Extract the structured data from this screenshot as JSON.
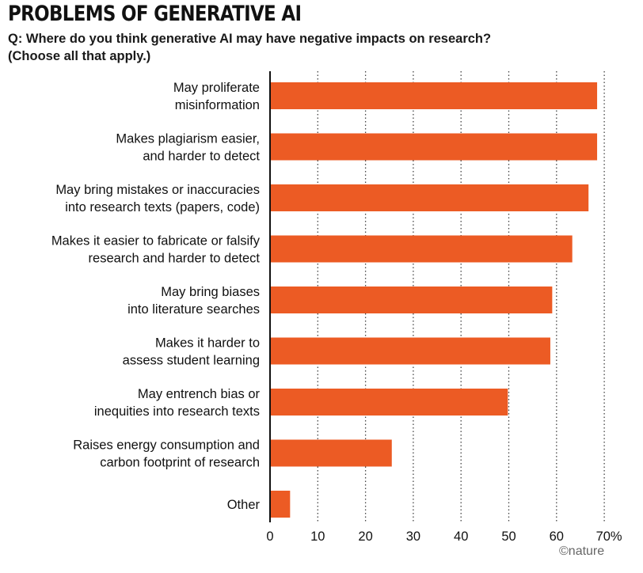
{
  "title": "PROBLEMS OF GENERATIVE AI",
  "subtitle": "Q: Where do you think generative AI may have negative impacts on research? (Choose all that apply.)",
  "credit": "©nature",
  "colors": {
    "bar": "#ec5b24",
    "axis": "#111111",
    "grid": "#444444"
  },
  "chart_data": {
    "type": "bar",
    "orientation": "horizontal",
    "categories": [
      [
        "May proliferate",
        "misinformation"
      ],
      [
        "Makes plagiarism easier,",
        "and harder to detect"
      ],
      [
        "May bring mistakes or inaccuracies",
        "into research texts (papers, code)"
      ],
      [
        "Makes it easier to fabricate or falsify",
        "research and harder to detect"
      ],
      [
        "May bring biases",
        "into literature searches"
      ],
      [
        "Makes it harder to",
        "assess student learning"
      ],
      [
        "May entrench bias or",
        "inequities into research texts"
      ],
      [
        "Raises energy consumption and",
        "carbon footprint of research"
      ],
      [
        "Other"
      ]
    ],
    "values": [
      68.5,
      68.5,
      66.7,
      63.3,
      59.1,
      58.7,
      49.8,
      25.5,
      4.2
    ],
    "xlim": [
      0,
      70
    ],
    "x_ticks": [
      "0",
      "10",
      "20",
      "30",
      "40",
      "50",
      "60",
      "70%"
    ],
    "grid": "vertical-dotted"
  }
}
